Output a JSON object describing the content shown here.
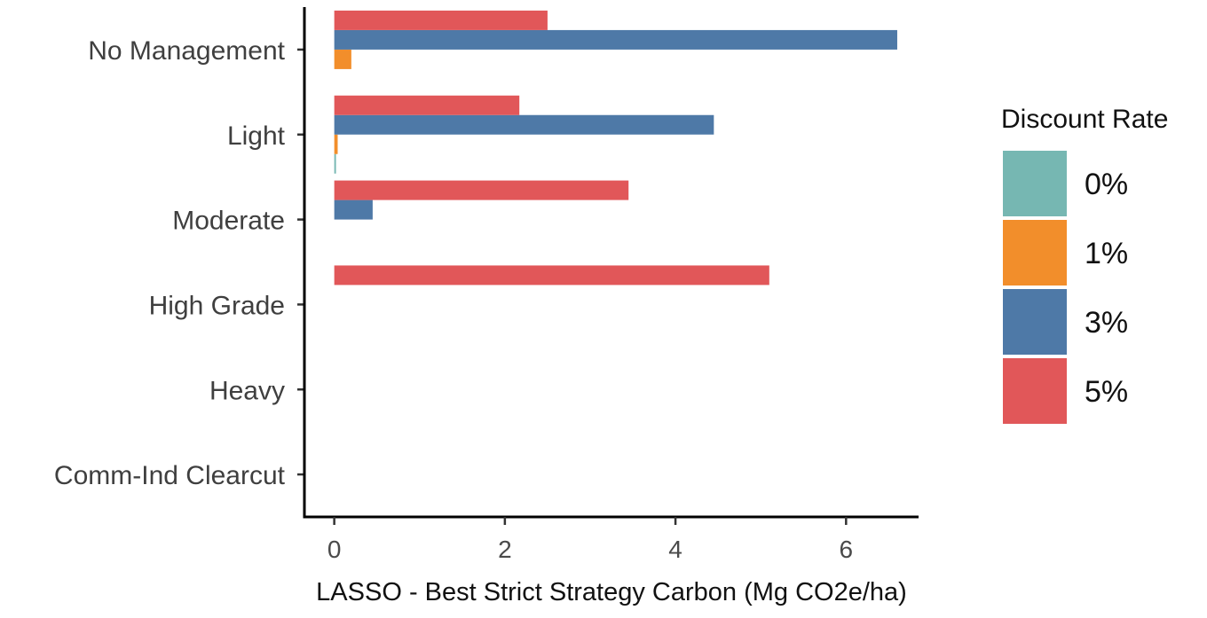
{
  "chart_data": {
    "type": "bar",
    "orientation": "horizontal",
    "categories": [
      "No Management",
      "Light",
      "Moderate",
      "High Grade",
      "Heavy",
      "Comm-Ind Clearcut"
    ],
    "series": [
      {
        "name": "0%",
        "color": "#76b7b2",
        "values": [
          0,
          0.02,
          0,
          0,
          0,
          0
        ]
      },
      {
        "name": "1%",
        "color": "#f28e2b",
        "values": [
          0.2,
          0.04,
          0,
          0,
          0,
          0
        ]
      },
      {
        "name": "3%",
        "color": "#4e79a7",
        "values": [
          6.6,
          4.45,
          0.45,
          0,
          0,
          0
        ]
      },
      {
        "name": "5%",
        "color": "#e15759",
        "values": [
          2.5,
          2.17,
          3.45,
          5.1,
          0,
          0
        ]
      }
    ],
    "xlabel": "LASSO - Best Strict Strategy Carbon (Mg CO2e/ha)",
    "ylabel": "",
    "xlim": [
      -0.35,
      6.85
    ],
    "xticks": [
      0,
      2,
      4,
      6
    ],
    "grid": false,
    "legend": {
      "title": "Discount Rate",
      "position": "right"
    }
  }
}
